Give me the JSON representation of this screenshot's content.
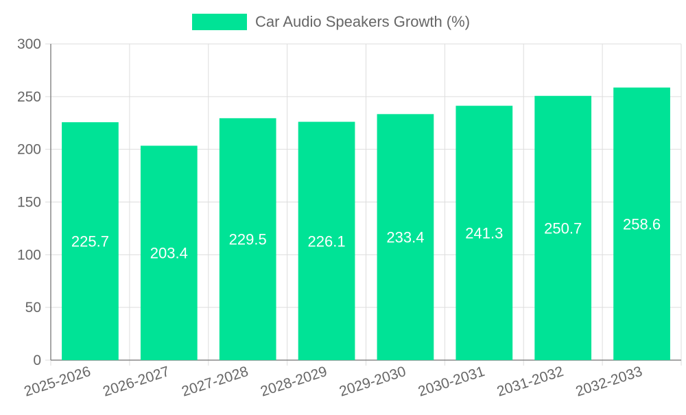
{
  "chart_data": {
    "type": "bar",
    "title": "",
    "xlabel": "",
    "ylabel": "",
    "categories": [
      "2025-2026",
      "2026-2027",
      "2027-2028",
      "2028-2029",
      "2029-2030",
      "2030-2031",
      "2031-2032",
      "2032-2033"
    ],
    "series": [
      {
        "name": "Car Audio Speakers Growth (%)",
        "values": [
          225.7,
          203.4,
          229.5,
          226.1,
          233.4,
          241.3,
          250.7,
          258.6
        ],
        "data_labels": [
          "225.7",
          "203.4",
          "229.5",
          "226.1",
          "233.4",
          "241.3",
          "250.7",
          "258.6"
        ]
      }
    ],
    "ylim": [
      0,
      300
    ],
    "yticks": [
      0,
      50,
      100,
      150,
      200,
      250,
      300
    ],
    "ytick_labels": [
      "0",
      "50",
      "100",
      "150",
      "200",
      "250",
      "300"
    ],
    "grid": true,
    "legend_position": "top-center",
    "colors": {
      "bar": "#00e396",
      "grid": "#dddddd",
      "axis": "#888888",
      "text": "#666666",
      "label": "#ffffff"
    }
  }
}
